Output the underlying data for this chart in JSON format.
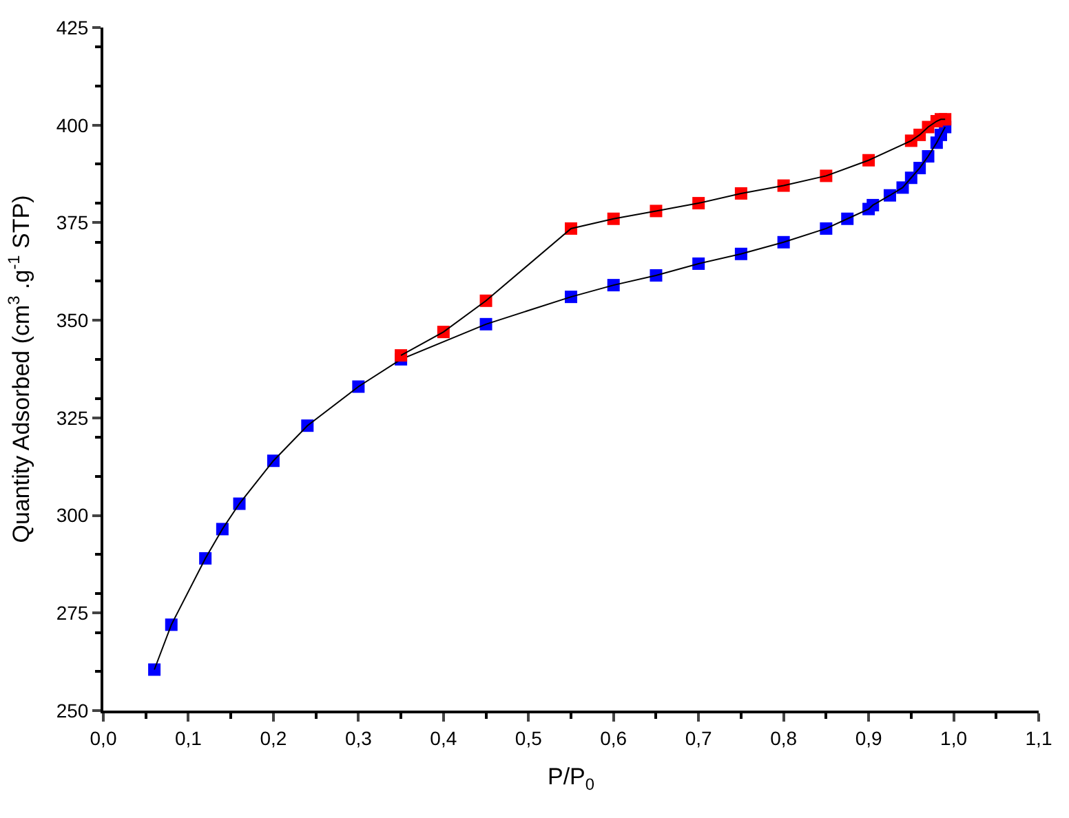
{
  "chart_data": {
    "type": "line",
    "xlabel": "P/P$_{0}$",
    "ylabel": "Quantity Adsorbed (cm$^{3}$ .g$^{-1}$ STP)",
    "marker": "square",
    "xlim": [
      0,
      1.1
    ],
    "ylim": [
      250,
      425
    ],
    "xticks": [
      {
        "value": 0,
        "label": "0,0"
      },
      {
        "value": 0.1,
        "label": "0,1"
      },
      {
        "value": 0.2,
        "label": "0,2"
      },
      {
        "value": 0.3,
        "label": "0,3"
      },
      {
        "value": 0.4,
        "label": "0,4"
      },
      {
        "value": 0.5,
        "label": "0,5"
      },
      {
        "value": 0.6,
        "label": "0,6"
      },
      {
        "value": 0.7,
        "label": "0,7"
      },
      {
        "value": 0.8,
        "label": "0,8"
      },
      {
        "value": 0.9,
        "label": "0,9"
      },
      {
        "value": 1.0,
        "label": "1,0"
      },
      {
        "value": 1.1,
        "label": "1,1"
      }
    ],
    "yticks": [
      250,
      275,
      300,
      325,
      350,
      375,
      400,
      425
    ],
    "series": [
      {
        "color": "#0000ff",
        "x": [
          0.06,
          0.08,
          0.12,
          0.14,
          0.16,
          0.2,
          0.24,
          0.3,
          0.35,
          0.45,
          0.55,
          0.6,
          0.65,
          0.7,
          0.75,
          0.8,
          0.85,
          0.875,
          0.9,
          0.905,
          0.925,
          0.94,
          0.95,
          0.96,
          0.97,
          0.98,
          0.985,
          0.99
        ],
        "values": [
          260.5,
          272,
          289,
          296.5,
          303,
          314,
          323,
          333,
          340,
          349,
          356,
          359,
          361.5,
          364.5,
          367,
          370,
          373.5,
          376,
          378.5,
          379.5,
          382,
          384,
          386.5,
          389,
          392,
          395.5,
          397.5,
          399.5
        ]
      },
      {
        "color": "#ff0000",
        "x": [
          0.99,
          0.985,
          0.98,
          0.97,
          0.96,
          0.95,
          0.9,
          0.85,
          0.8,
          0.75,
          0.7,
          0.65,
          0.6,
          0.55,
          0.45,
          0.4,
          0.35
        ],
        "values": [
          401.5,
          401.5,
          401,
          399.5,
          397.5,
          396,
          391,
          387,
          384.5,
          382.5,
          380,
          378,
          376,
          373.5,
          355,
          347,
          341
        ]
      }
    ]
  }
}
